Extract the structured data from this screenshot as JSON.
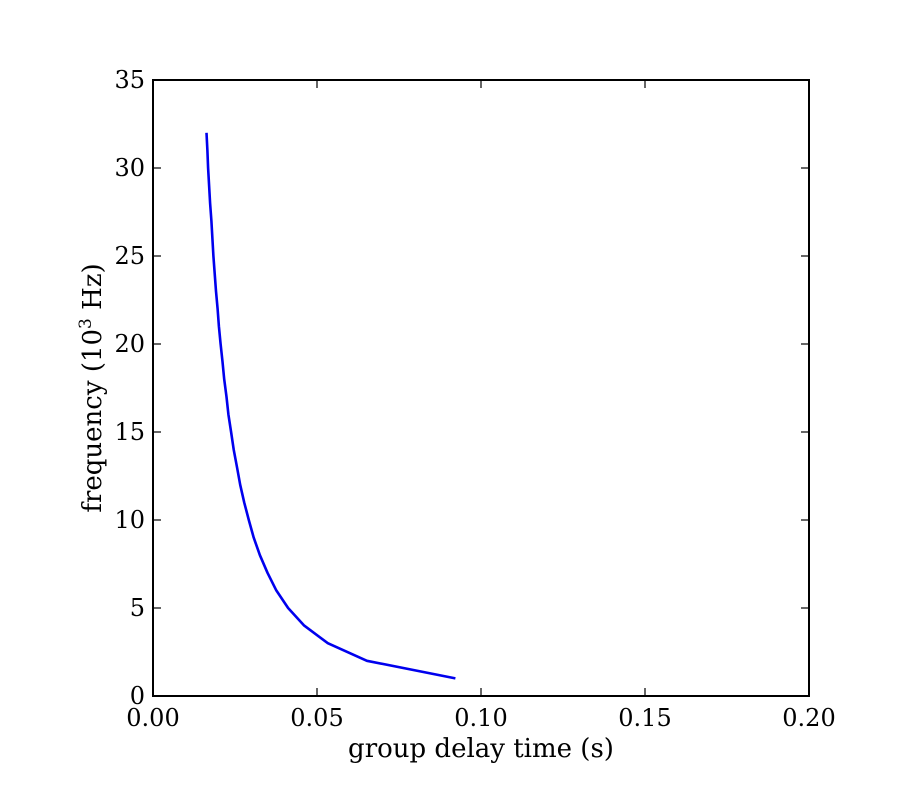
{
  "chart_data": {
    "type": "line",
    "xlabel": "group delay time (s)",
    "ylabel": {
      "prefix": "frequency (10",
      "superscript": "3",
      "suffix": " Hz)"
    },
    "xlim": [
      0.0,
      0.2
    ],
    "ylim": [
      0,
      35
    ],
    "x_ticks": [
      0.0,
      0.05,
      0.1,
      0.15,
      0.2
    ],
    "x_tick_labels": [
      "0.00",
      "0.05",
      "0.10",
      "0.15",
      "0.20"
    ],
    "y_ticks": [
      0,
      5,
      10,
      15,
      20,
      25,
      30,
      35
    ],
    "y_tick_labels": [
      "0",
      "5",
      "10",
      "15",
      "20",
      "25",
      "30",
      "35"
    ],
    "grid": false,
    "line_color": "#0000ee",
    "series": [
      {
        "x": [
          0.0922,
          0.0652,
          0.0533,
          0.0461,
          0.0412,
          0.0376,
          0.0349,
          0.0326,
          0.0307,
          0.0292,
          0.0278,
          0.0266,
          0.0256,
          0.0246,
          0.0238,
          0.023,
          0.0224,
          0.0217,
          0.0212,
          0.0206,
          0.0201,
          0.0197,
          0.0192,
          0.0188,
          0.0184,
          0.0181,
          0.0178,
          0.0174,
          0.0171,
          0.0168,
          0.0166,
          0.0163
        ],
        "y": [
          1,
          2,
          3,
          4,
          5,
          6,
          7,
          8,
          9,
          10,
          11,
          12,
          13,
          14,
          15,
          16,
          17,
          18,
          19,
          20,
          21,
          22,
          23,
          24,
          25,
          26,
          27,
          28,
          29,
          30,
          31,
          32
        ]
      }
    ]
  }
}
